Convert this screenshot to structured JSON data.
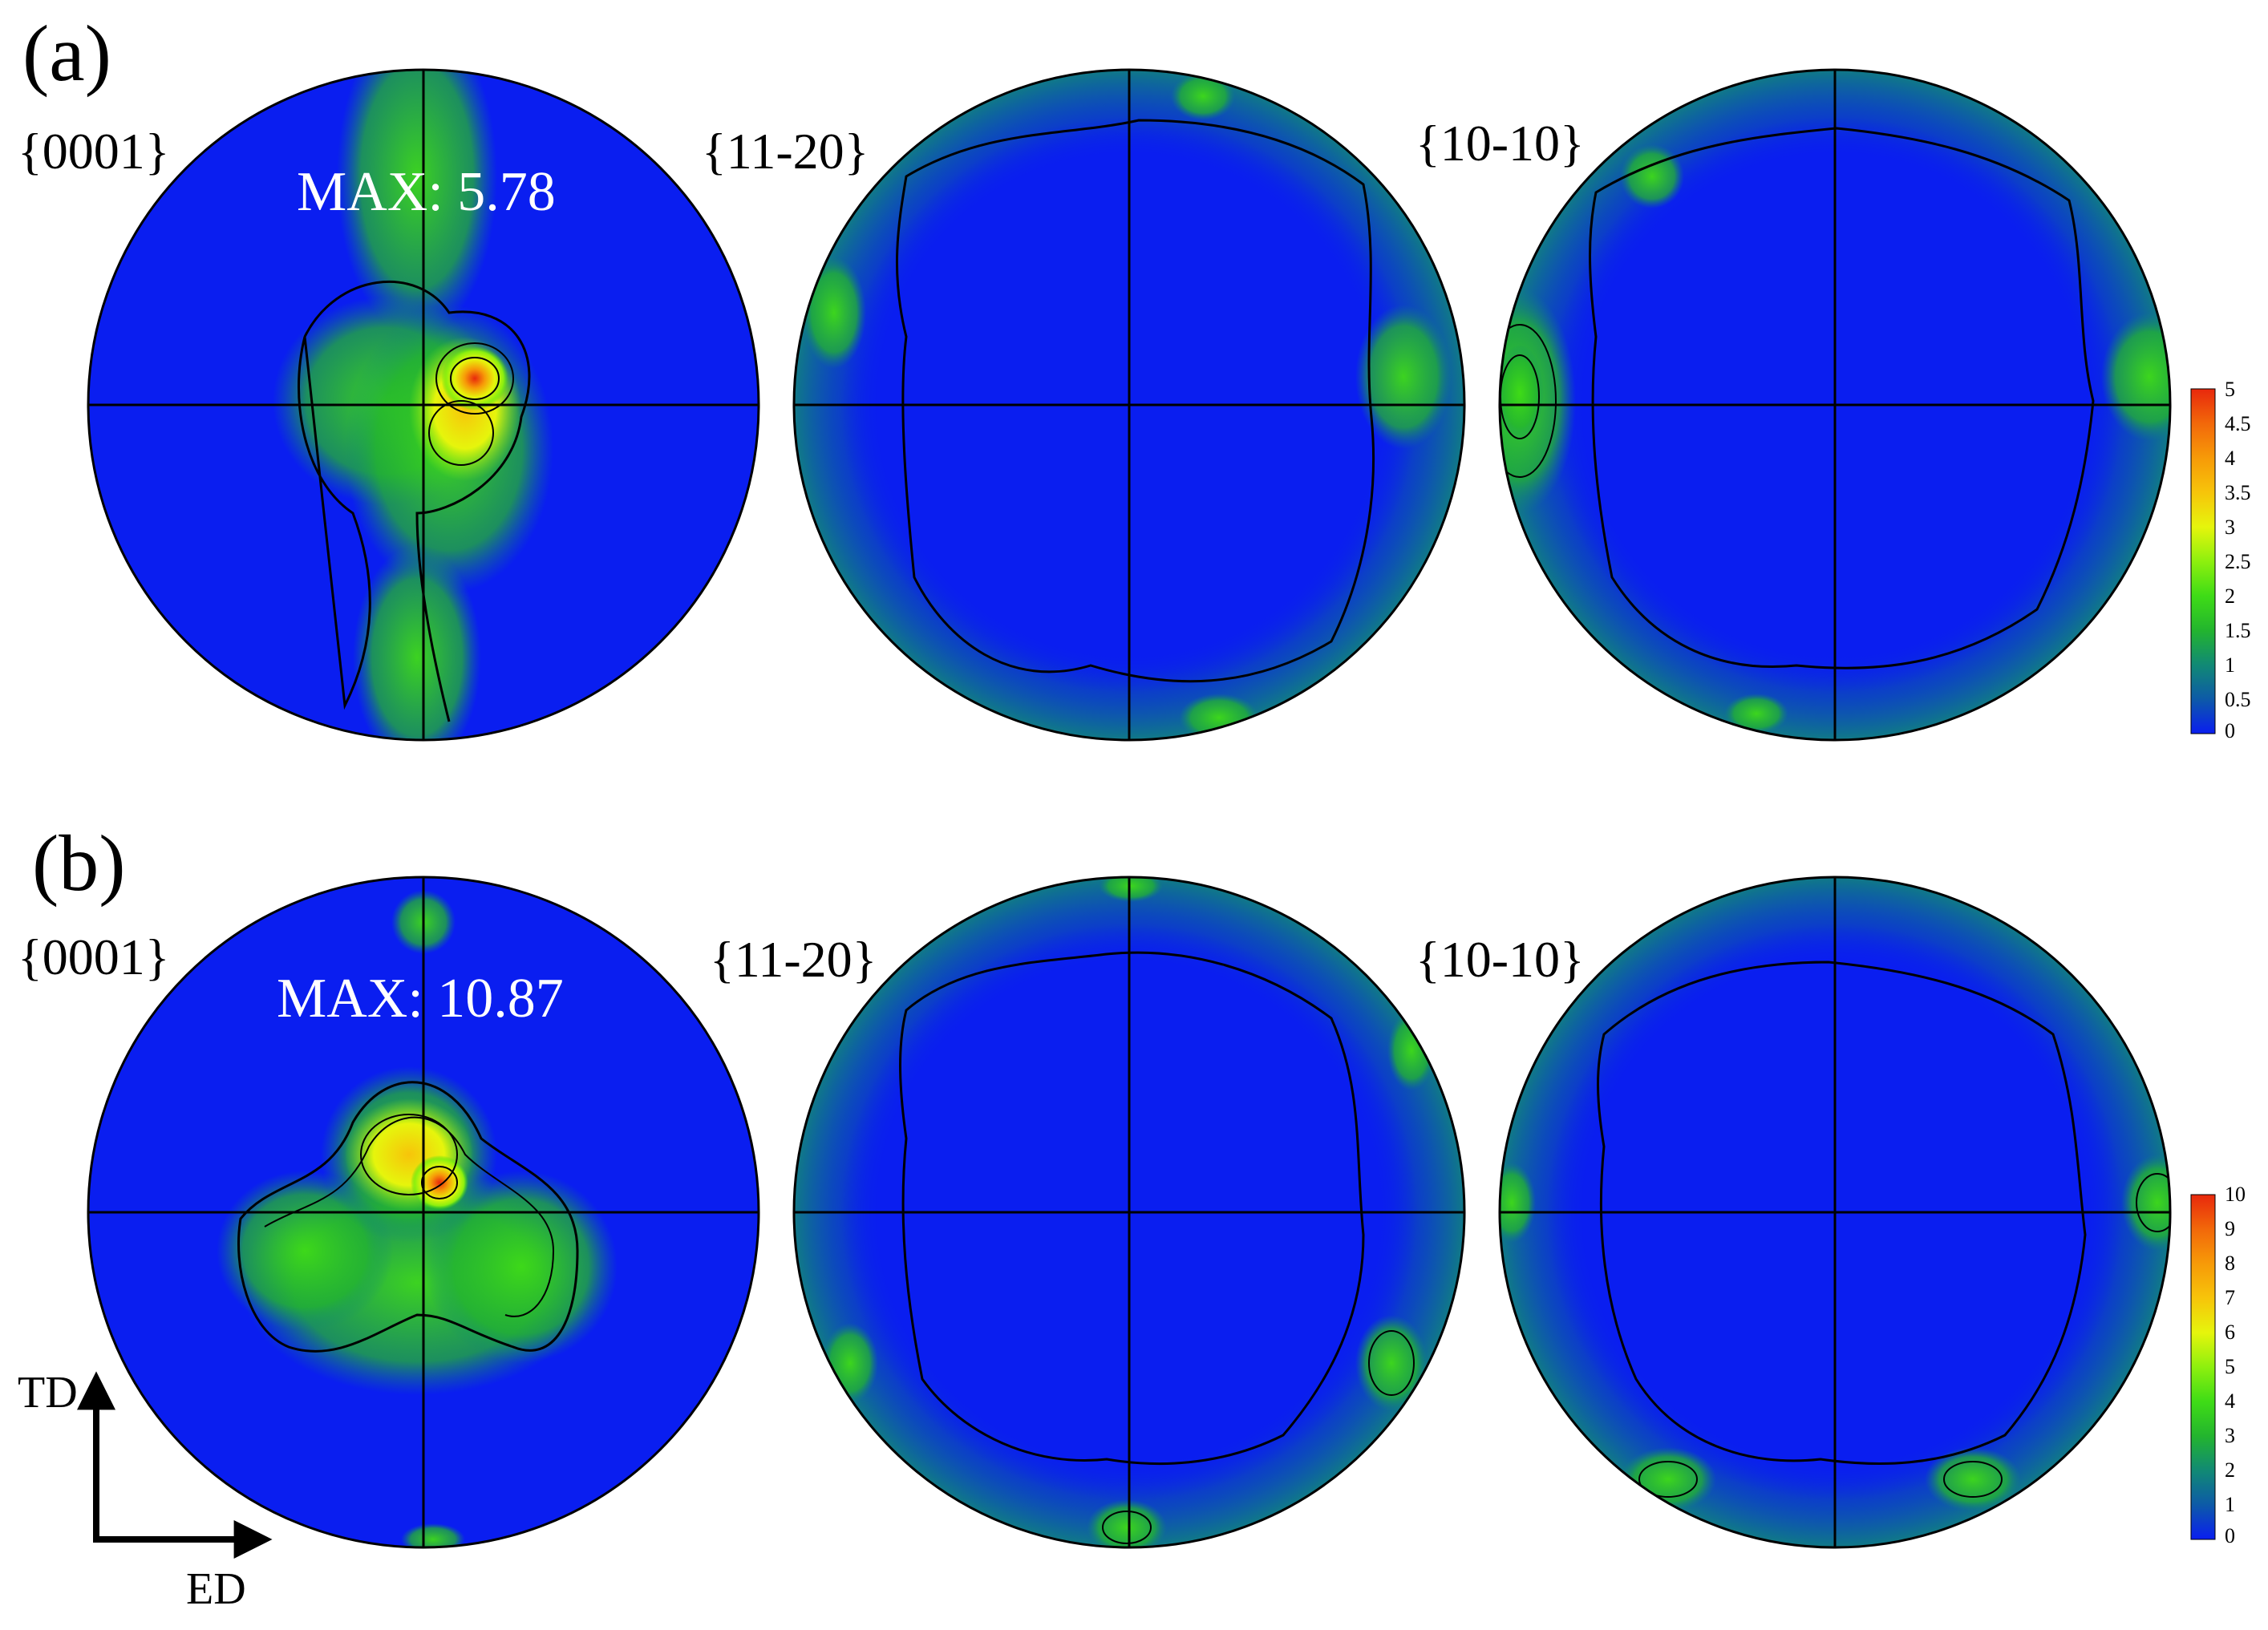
{
  "panels": [
    {
      "letter": "(a)",
      "max_text": "MAX: 5.78",
      "pole_labels": [
        "{0001}",
        "{11-20}",
        "{10-10}"
      ],
      "colorbar": {
        "ticks": [
          "5",
          "4.5",
          "4",
          "3.5",
          "3",
          "2.5",
          "2",
          "1.5",
          "1",
          "0.5",
          "0"
        ],
        "max": 5
      }
    },
    {
      "letter": "(b)",
      "max_text": "MAX: 10.87",
      "pole_labels": [
        "{0001}",
        "{11-20}",
        "{10-10}"
      ],
      "colorbar": {
        "ticks": [
          "10",
          "9",
          "8",
          "7",
          "6",
          "5",
          "4",
          "3",
          "2",
          "1",
          "0"
        ],
        "max": 10
      }
    }
  ],
  "axes": {
    "vertical": "TD",
    "horizontal": "ED"
  },
  "colors": {
    "scale": [
      "#0a1ef0",
      "#0d5aa8",
      "#118a74",
      "#23b52e",
      "#3fdc16",
      "#8ef00e",
      "#e6f50c",
      "#f7c40a",
      "#f79a08",
      "#f2680a",
      "#e8280c"
    ],
    "outline": "#000000",
    "text_on_plot": "#ffffff"
  }
}
